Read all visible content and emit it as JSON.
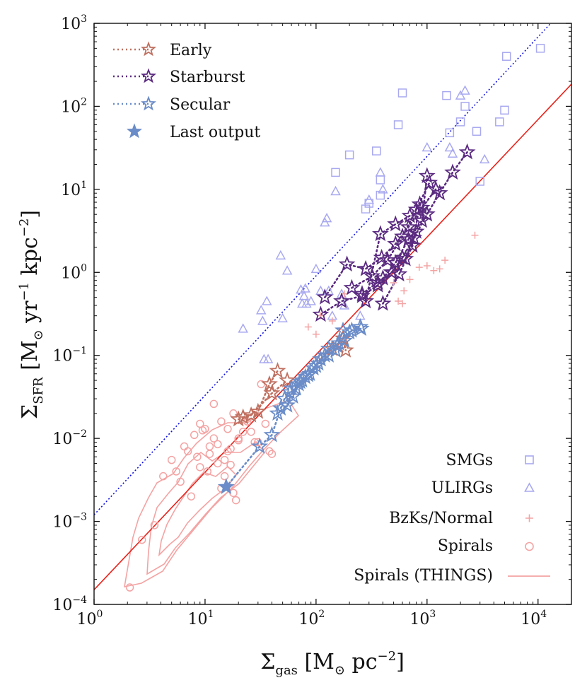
{
  "chart_data": {
    "type": "scatter",
    "title": "",
    "xlabel": {
      "main": "Σ",
      "sub": "gas",
      "rest": " [M",
      "odot": "⊙",
      "rest2": " pc",
      "sup": "−2",
      "close": "]"
    },
    "ylabel": {
      "main": "Σ",
      "sub": "SFR",
      "rest": " [M",
      "odot": "⊙",
      "rest2": " yr",
      "sup1": "−1",
      "rest3": " kpc",
      "sup2": "−2",
      "close": "]"
    },
    "x_scale": "log",
    "y_scale": "log",
    "xlim": [
      1,
      20000
    ],
    "ylim": [
      0.0001,
      1000
    ],
    "x_ticks": [
      {
        "value": 1,
        "base": "10",
        "exp": "0"
      },
      {
        "value": 10,
        "base": "10",
        "exp": "1"
      },
      {
        "value": 100,
        "base": "10",
        "exp": "2"
      },
      {
        "value": 1000,
        "base": "10",
        "exp": "3"
      },
      {
        "value": 10000,
        "base": "10",
        "exp": "4"
      }
    ],
    "y_ticks": [
      {
        "value": 0.0001,
        "base": "10",
        "exp": "−4"
      },
      {
        "value": 0.001,
        "base": "10",
        "exp": "−3"
      },
      {
        "value": 0.01,
        "base": "10",
        "exp": "−2"
      },
      {
        "value": 0.1,
        "base": "10",
        "exp": "−1"
      },
      {
        "value": 1,
        "base": "10",
        "exp": "0"
      },
      {
        "value": 10,
        "base": "10",
        "exp": "1"
      },
      {
        "value": 100,
        "base": "10",
        "exp": "2"
      },
      {
        "value": 1000,
        "base": "10",
        "exp": "3"
      }
    ],
    "grid": false,
    "legends": [
      {
        "placement": "top-left",
        "entries": [
          {
            "label": "Early",
            "color": "#c07060",
            "marker": "star-open",
            "line": "dotted"
          },
          {
            "label": "Starburst",
            "color": "#5a2a80",
            "marker": "star-open",
            "line": "dotted"
          },
          {
            "label": "Secular",
            "color": "#6a8cc8",
            "marker": "star-open",
            "line": "dotted"
          },
          {
            "label": "Last output",
            "color": "#6a8cc8",
            "marker": "star-filled",
            "line": "none"
          }
        ]
      },
      {
        "placement": "bottom-right",
        "entries": [
          {
            "label": "SMGs",
            "color": "#a9a9f0",
            "marker": "square-open"
          },
          {
            "label": "ULIRGs",
            "color": "#a9a9f0",
            "marker": "triangle-open"
          },
          {
            "label": "BzKs/Normal",
            "color": "#f4a3a3",
            "marker": "plus"
          },
          {
            "label": "Spirals",
            "color": "#f4a3a3",
            "marker": "circle-open"
          },
          {
            "label": "Spirals (THINGS)",
            "color": "#f4a3a3",
            "marker": "line"
          }
        ]
      }
    ],
    "lines": [
      {
        "label": "red-relation",
        "color": "#e8221a",
        "style": "solid",
        "x": [
          1,
          20000
        ],
        "y": [
          0.00015,
          185
        ]
      },
      {
        "label": "blue-relation",
        "color": "#1010e0",
        "style": "dotted",
        "x": [
          1,
          13000
        ],
        "y": [
          0.0012,
          1000
        ]
      }
    ],
    "series": [
      {
        "name": "SMGs",
        "marker": "square-open",
        "color": "#a9a9f0",
        "x": [
          150,
          200,
          280,
          300,
          350,
          380,
          380,
          550,
          600,
          1500,
          1600,
          2000,
          2200,
          2800,
          3000,
          4500,
          5000,
          5200,
          10500
        ],
        "y": [
          16,
          26,
          5.8,
          6.8,
          29,
          13,
          8.5,
          60,
          145,
          135,
          48,
          65,
          100,
          50,
          12.5,
          65,
          90,
          400,
          500
        ]
      },
      {
        "name": "ULIRGs",
        "marker": "triangle-open",
        "color": "#a9a9f0",
        "x": [
          22,
          32,
          33,
          34,
          36,
          37,
          48,
          50,
          55,
          73,
          75,
          78,
          80,
          82,
          90,
          100,
          110,
          120,
          125,
          130,
          140,
          150,
          170,
          180,
          250,
          300,
          380,
          400,
          1000,
          1600,
          1700,
          2000,
          2200,
          3300
        ],
        "y": [
          0.21,
          0.35,
          0.26,
          0.09,
          0.45,
          0.09,
          1.6,
          0.28,
          1.05,
          0.62,
          0.42,
          0.52,
          0.64,
          0.42,
          0.45,
          1.1,
          0.6,
          4.0,
          4.5,
          0.6,
          0.3,
          9.5,
          0.55,
          0.4,
          0.3,
          7.5,
          16,
          10,
          32,
          32,
          27,
          135,
          155,
          23
        ]
      },
      {
        "name": "BzKs/Normal",
        "marker": "plus",
        "color": "#f4a3a3",
        "x": [
          85,
          100,
          110,
          140,
          160,
          180,
          500,
          550,
          600,
          620,
          700,
          850,
          1000,
          1150,
          1300,
          1450,
          2700
        ],
        "y": [
          0.22,
          0.18,
          0.3,
          0.26,
          0.12,
          0.55,
          0.75,
          0.45,
          0.42,
          0.6,
          0.82,
          1.15,
          1.2,
          1.05,
          1.1,
          1.4,
          2.8
        ]
      },
      {
        "name": "Spirals",
        "marker": "circle-open",
        "color": "#f4a3a3",
        "x": [
          2.1,
          2.7,
          3.5,
          4.2,
          5,
          5.5,
          6,
          6.5,
          7,
          7.5,
          8,
          8.5,
          9,
          9.5,
          10,
          10.5,
          11,
          12,
          13,
          14,
          15,
          16,
          17,
          18,
          19,
          20,
          22,
          24,
          26,
          28,
          30,
          32,
          35,
          38,
          40,
          12,
          14,
          16,
          18,
          20,
          9,
          11,
          13,
          15,
          17
        ],
        "y": [
          0.00016,
          0.0006,
          0.0009,
          0.0035,
          0.0055,
          0.004,
          0.003,
          0.008,
          0.007,
          0.002,
          0.011,
          0.006,
          0.015,
          0.0125,
          0.013,
          0.004,
          0.008,
          0.01,
          0.005,
          0.0025,
          0.0035,
          0.007,
          0.0075,
          0.0022,
          0.0018,
          0.01,
          0.012,
          0.016,
          0.012,
          0.009,
          0.009,
          0.045,
          0.015,
          0.007,
          0.0065,
          0.026,
          0.016,
          0.013,
          0.02,
          0.0095,
          0.0045,
          0.0065,
          0.0085,
          0.0055,
          0.0048
        ]
      },
      {
        "name": "Early",
        "marker": "star-open",
        "color": "#c07060",
        "tracks": [
          {
            "x": [
              20,
              26,
              40,
              55
            ],
            "y": [
              0.017,
              0.019,
              0.035,
              0.05
            ]
          },
          {
            "x": [
              22,
              30,
              38,
              45
            ],
            "y": [
              0.018,
              0.021,
              0.045,
              0.065
            ]
          },
          {
            "x": [
              110,
              140,
              175,
              185
            ],
            "y": [
              0.09,
              0.12,
              0.16,
              0.115
            ]
          }
        ]
      },
      {
        "name": "Starburst",
        "marker": "star-open",
        "color": "#5a2a80",
        "tracks": [
          {
            "x": [
              110,
              170,
              260,
              360,
              480,
              600,
              760,
              1000,
              1300,
              1700,
              2300
            ],
            "y": [
              0.31,
              0.45,
              0.52,
              0.7,
              1.0,
              1.5,
              2.6,
              5.0,
              9.0,
              16,
              28
            ]
          },
          {
            "x": [
              120,
              190,
              280,
              390,
              520,
              680,
              900,
              1200
            ],
            "y": [
              0.5,
              1.25,
              1.1,
              1.5,
              2.2,
              3.5,
              6.0,
              10
            ]
          },
          {
            "x": [
              210,
              320,
              440,
              600,
              800,
              1050
            ],
            "y": [
              0.65,
              0.9,
              1.4,
              2.7,
              5.7,
              12
            ]
          },
          {
            "x": [
              260,
              400,
              520,
              680,
              900,
              1000
            ],
            "y": [
              0.55,
              0.85,
              1.3,
              2.5,
              4.2,
              14.5
            ]
          },
          {
            "x": [
              280,
              380,
              520,
              700
            ],
            "y": [
              0.45,
              2.9,
              3.8,
              4.8
            ]
          },
          {
            "x": [
              360,
              480,
              640,
              800
            ],
            "y": [
              0.75,
              1.0,
              1.45,
              3.1
            ]
          },
          {
            "x": [
              400,
              560,
              740,
              860
            ],
            "y": [
              0.42,
              0.95,
              2.1,
              6.6
            ]
          }
        ]
      },
      {
        "name": "Secular",
        "marker": "star-open",
        "color": "#6a8cc8",
        "tracks": [
          {
            "x": [
              15.5,
              31,
              40,
              48,
              52,
              58,
              66,
              75,
              88,
              105,
              130,
              155,
              180,
              210,
              255
            ],
            "y": [
              0.0026,
              0.008,
              0.011,
              0.023,
              0.03,
              0.036,
              0.04,
              0.05,
              0.06,
              0.08,
              0.1,
              0.13,
              0.15,
              0.2,
              0.21
            ]
          },
          {
            "x": [
              45,
              55,
              62,
              70,
              80,
              95,
              110,
              130,
              160,
              200,
              250
            ],
            "y": [
              0.02,
              0.025,
              0.032,
              0.045,
              0.055,
              0.07,
              0.09,
              0.12,
              0.14,
              0.19,
              0.22
            ]
          },
          {
            "x": [
              60,
              72,
              85,
              100,
              120,
              150,
              175
            ],
            "y": [
              0.04,
              0.048,
              0.058,
              0.075,
              0.1,
              0.115,
              0.2
            ]
          }
        ]
      },
      {
        "name": "Last output",
        "marker": "star-filled",
        "color": "#6a8cc8",
        "x": [
          15.5
        ],
        "y": [
          0.0026
        ]
      }
    ]
  }
}
